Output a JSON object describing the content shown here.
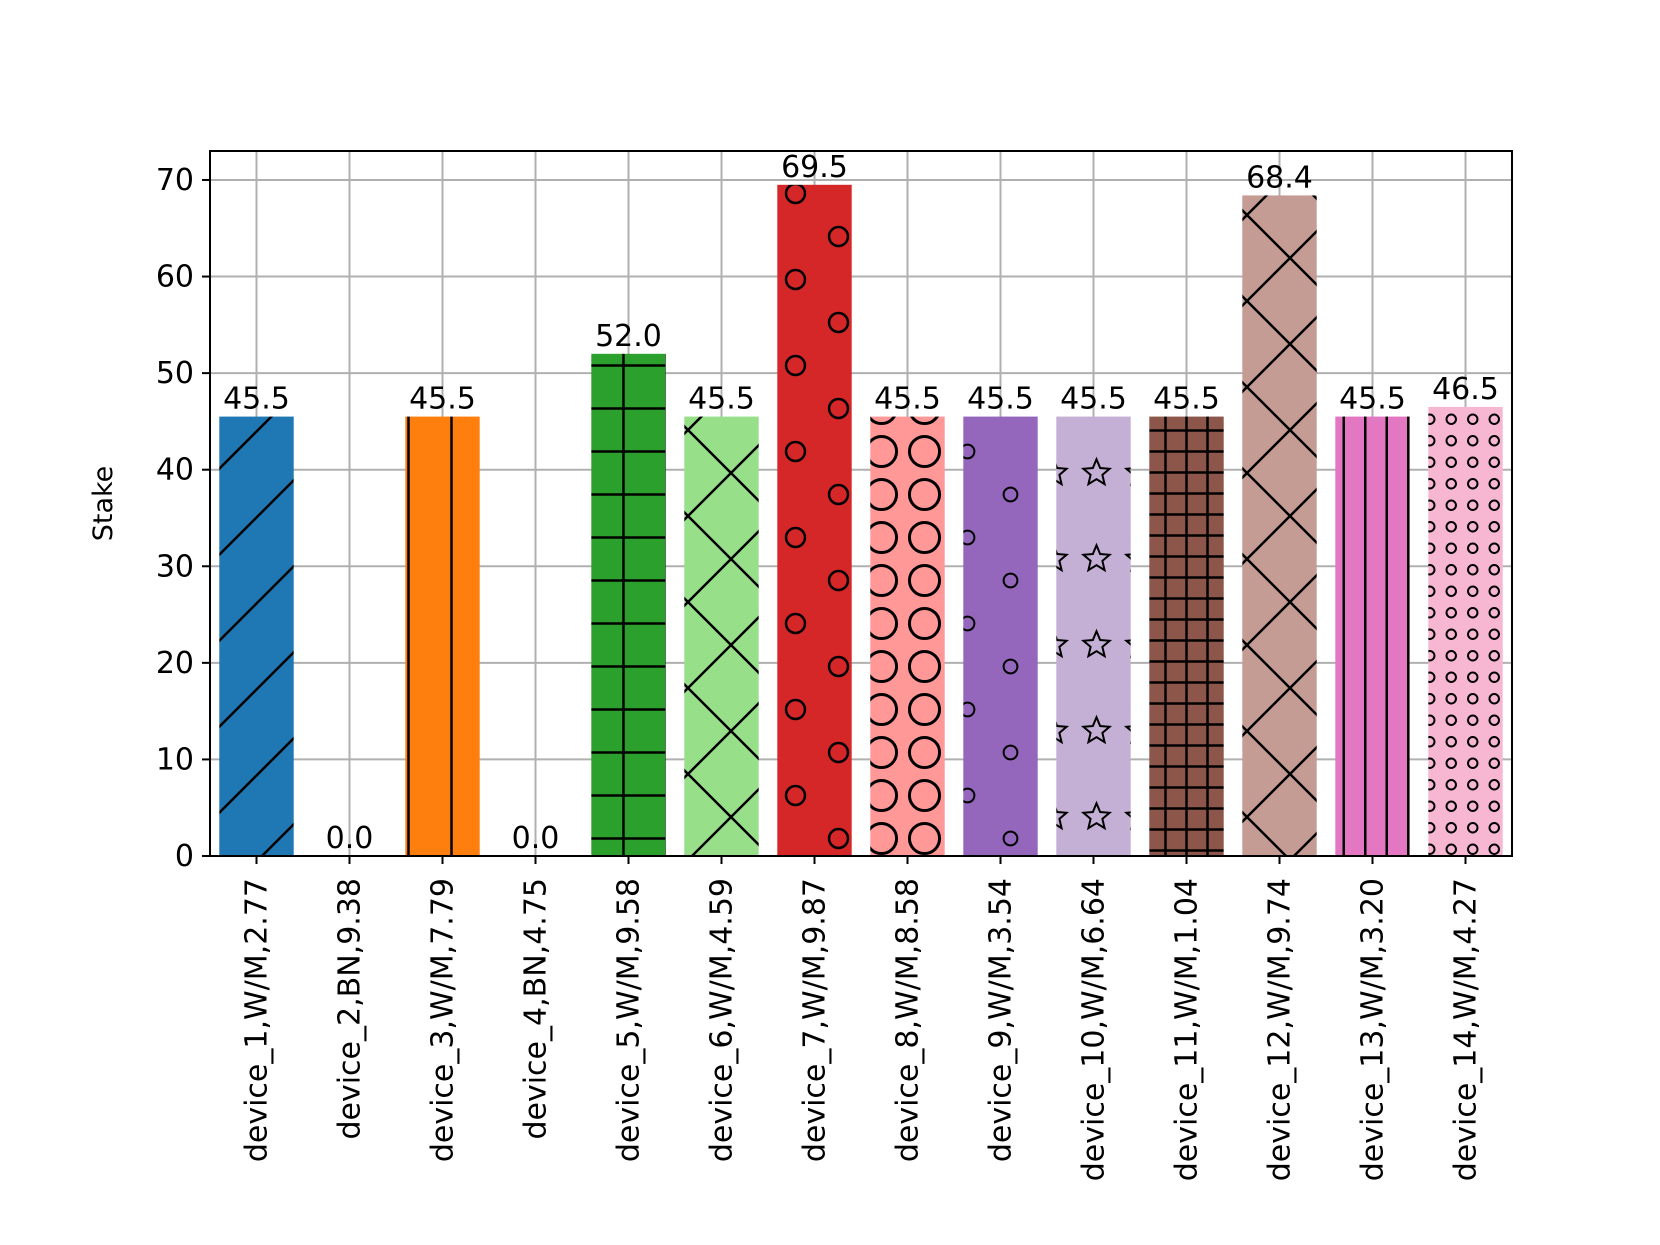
{
  "chart_data": {
    "type": "bar",
    "title": "",
    "xlabel": "",
    "ylabel": "Stake",
    "ylim": [
      0,
      73
    ],
    "yticks": [
      0,
      10,
      20,
      30,
      40,
      50,
      60,
      70
    ],
    "grid": true,
    "categories": [
      "device_1,W/M,2.77",
      "device_2,BN,9.38",
      "device_3,W/M,7.79",
      "device_4,BN,4.75",
      "device_5,W/M,9.58",
      "device_6,W/M,4.59",
      "device_7,W/M,9.87",
      "device_8,W/M,8.58",
      "device_9,W/M,3.54",
      "device_10,W/M,6.64",
      "device_11,W/M,1.04",
      "device_12,W/M,9.74",
      "device_13,W/M,3.20",
      "device_14,W/M,4.27"
    ],
    "values": [
      45.5,
      0.0,
      45.5,
      0.0,
      52.0,
      45.5,
      69.5,
      45.5,
      45.5,
      45.5,
      45.5,
      68.4,
      45.5,
      46.5
    ],
    "value_labels": [
      "45.5",
      "0.0",
      "45.5",
      "0.0",
      "52.0",
      "45.5",
      "69.5",
      "45.5",
      "45.5",
      "45.5",
      "45.5",
      "68.4",
      "45.5",
      "46.5"
    ],
    "colors": [
      "#1f77b4",
      "#aec7e8",
      "#ff7f0e",
      "#ffbb78",
      "#2ca02c",
      "#98df8a",
      "#d62728",
      "#ff9896",
      "#9467bd",
      "#c5b0d5",
      "#8c564b",
      "#c49c94",
      "#e377c2",
      "#f7b6d2"
    ],
    "hatches": [
      "diagonal",
      "small-circles",
      "vertical",
      "horizontal",
      "plus",
      "cross",
      "circles",
      "big-circles",
      "dots",
      "stars",
      "dense-plus",
      "dense-cross",
      "dense-vertical",
      "dense-circles"
    ]
  }
}
